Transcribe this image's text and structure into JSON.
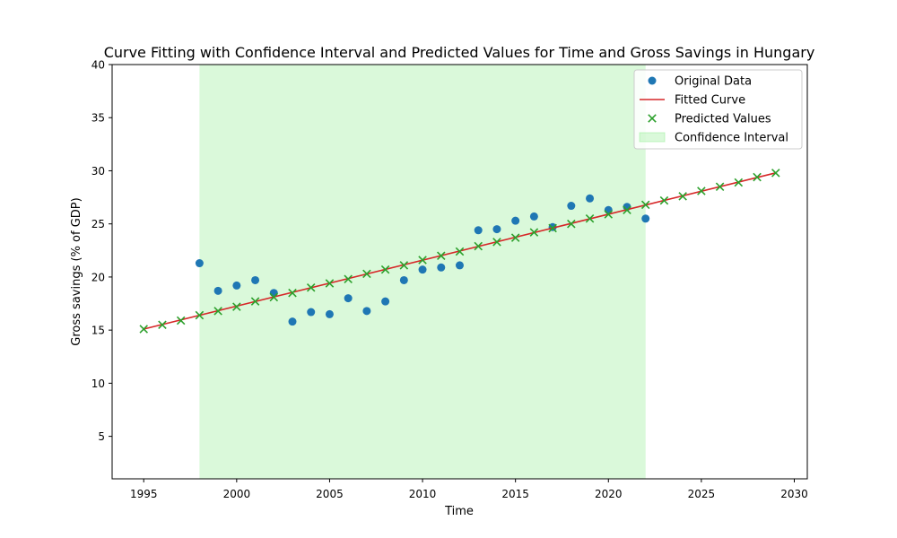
{
  "chart_data": {
    "type": "scatter",
    "title": "Curve Fitting with Confidence Interval and Predicted Values for Time and Gross Savings in Hungary",
    "xlabel": "Time",
    "ylabel": "Gross savings (% of GDP)",
    "xlim": [
      1993.3,
      2030.7
    ],
    "ylim": [
      1.0,
      40.0
    ],
    "xticks": [
      1995,
      2000,
      2005,
      2010,
      2015,
      2020,
      2025,
      2030
    ],
    "yticks": [
      5,
      10,
      15,
      20,
      25,
      30,
      35,
      40
    ],
    "confidence_interval": {
      "x_start": 1998,
      "x_end": 2022,
      "color": "#90ee90",
      "opacity": 0.33
    },
    "legend_position": "top-right",
    "series": [
      {
        "name": "Original Data",
        "kind": "scatter",
        "color": "#1f77b4",
        "x": [
          1998,
          1999,
          2000,
          2001,
          2002,
          2003,
          2004,
          2005,
          2006,
          2007,
          2008,
          2009,
          2010,
          2011,
          2012,
          2013,
          2014,
          2015,
          2016,
          2017,
          2018,
          2019,
          2020,
          2021,
          2022
        ],
        "y": [
          21.3,
          18.7,
          19.2,
          19.7,
          18.5,
          15.8,
          16.7,
          16.5,
          18.0,
          16.8,
          17.7,
          19.7,
          20.7,
          20.9,
          21.1,
          24.4,
          24.5,
          25.3,
          25.7,
          24.7,
          26.7,
          27.4,
          26.3,
          26.6,
          25.5
        ]
      },
      {
        "name": "Fitted Curve",
        "kind": "line",
        "color": "#d62728",
        "x": [
          1995,
          2029
        ],
        "y": [
          15.1,
          29.8
        ]
      },
      {
        "name": "Predicted Values",
        "kind": "x-marker",
        "color": "#2ca02c",
        "x": [
          1995,
          1996,
          1997,
          1998,
          1999,
          2000,
          2001,
          2002,
          2003,
          2004,
          2005,
          2006,
          2007,
          2008,
          2009,
          2010,
          2011,
          2012,
          2013,
          2014,
          2015,
          2016,
          2017,
          2018,
          2019,
          2020,
          2021,
          2022,
          2023,
          2024,
          2025,
          2026,
          2027,
          2028,
          2029
        ],
        "y": [
          15.1,
          15.5,
          15.9,
          16.4,
          16.8,
          17.2,
          17.7,
          18.1,
          18.5,
          19.0,
          19.4,
          19.8,
          20.3,
          20.7,
          21.1,
          21.6,
          22.0,
          22.4,
          22.9,
          23.3,
          23.7,
          24.2,
          24.6,
          25.0,
          25.5,
          25.9,
          26.3,
          26.8,
          27.2,
          27.6,
          28.1,
          28.5,
          28.9,
          29.4,
          29.8
        ]
      },
      {
        "name": "Confidence Interval",
        "kind": "band",
        "color": "#90ee90"
      }
    ]
  }
}
